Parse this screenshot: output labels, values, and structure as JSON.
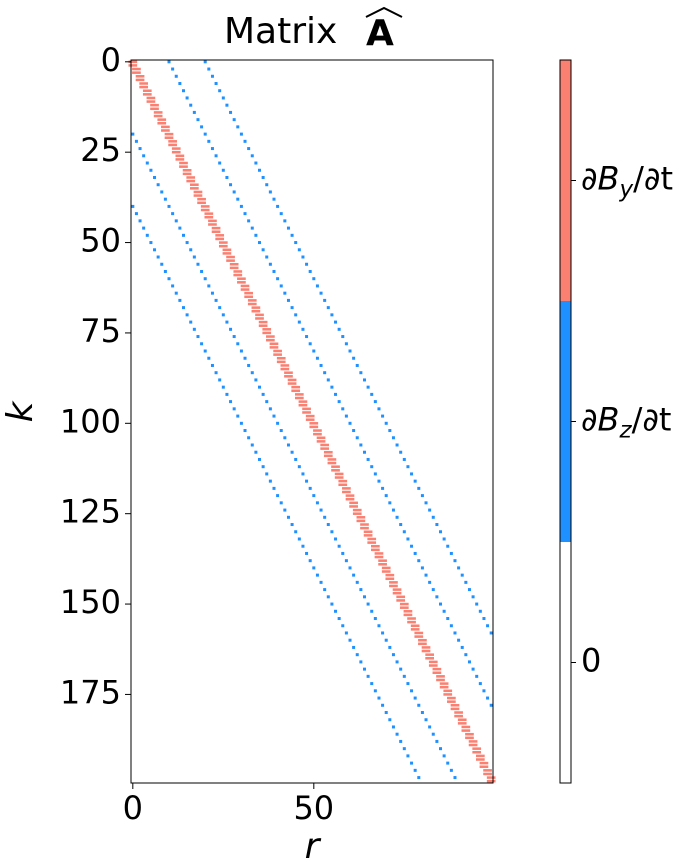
{
  "chart_data": {
    "type": "matrix",
    "title": "Matrix",
    "title_symbol": "A",
    "x_label": "r",
    "y_label": "k",
    "xlim": [
      -0.5,
      99.5
    ],
    "ylim": [
      199.5,
      -0.5
    ],
    "xticks": [
      0,
      50
    ],
    "yticks": [
      0,
      25,
      50,
      75,
      100,
      125,
      150,
      175
    ],
    "levels": [
      {
        "label": [
          "0"
        ],
        "color": "#ffffff"
      },
      {
        "label": [
          "∂B",
          "z",
          "/∂t"
        ],
        "color": "#1e90ff"
      },
      {
        "label": [
          "∂B",
          "y",
          "/∂t"
        ],
        "color": "#fa8072"
      }
    ],
    "series": [
      {
        "level": 1,
        "x": [
          10,
          11,
          12,
          13,
          14,
          15,
          16,
          17,
          18,
          19,
          20,
          21,
          22,
          23,
          24,
          25,
          26,
          27,
          28,
          29,
          30,
          31,
          32,
          33,
          34,
          35,
          36,
          37,
          38,
          39,
          40,
          41,
          42,
          43,
          44,
          45,
          46,
          47,
          48,
          49,
          50,
          51,
          52,
          53,
          54,
          55,
          56,
          57,
          58,
          59,
          60,
          61,
          62,
          63,
          64,
          65,
          66,
          67,
          68,
          69,
          70,
          71,
          72,
          73,
          74,
          75,
          76,
          77,
          78,
          79,
          80,
          81,
          82,
          83,
          84,
          85,
          86,
          87,
          88,
          89,
          90,
          91,
          92,
          93,
          94,
          95,
          96,
          97,
          98,
          99
        ],
        "values": [
          0,
          2,
          4,
          6,
          8,
          10,
          12,
          14,
          16,
          18,
          20,
          22,
          24,
          26,
          28,
          30,
          32,
          34,
          36,
          38,
          40,
          42,
          44,
          46,
          48,
          50,
          52,
          54,
          56,
          58,
          60,
          62,
          64,
          66,
          68,
          70,
          72,
          74,
          76,
          78,
          80,
          82,
          84,
          86,
          88,
          90,
          92,
          94,
          96,
          98,
          100,
          102,
          104,
          106,
          108,
          110,
          112,
          114,
          116,
          118,
          120,
          122,
          124,
          126,
          128,
          130,
          132,
          134,
          136,
          138,
          140,
          142,
          144,
          146,
          148,
          150,
          152,
          154,
          156,
          158,
          160,
          162,
          164,
          166,
          168,
          170,
          172,
          174,
          176,
          178
        ]
      },
      {
        "level": 1,
        "x": [
          20,
          21,
          22,
          23,
          24,
          25,
          26,
          27,
          28,
          29,
          30,
          31,
          32,
          33,
          34,
          35,
          36,
          37,
          38,
          39,
          40,
          41,
          42,
          43,
          44,
          45,
          46,
          47,
          48,
          49,
          50,
          51,
          52,
          53,
          54,
          55,
          56,
          57,
          58,
          59,
          60,
          61,
          62,
          63,
          64,
          65,
          66,
          67,
          68,
          69,
          70,
          71,
          72,
          73,
          74,
          75,
          76,
          77,
          78,
          79,
          80,
          81,
          82,
          83,
          84,
          85,
          86,
          87,
          88,
          89,
          90,
          91,
          92,
          93,
          94,
          95,
          96,
          97,
          98,
          99
        ],
        "values": [
          0,
          2,
          4,
          6,
          8,
          10,
          12,
          14,
          16,
          18,
          20,
          22,
          24,
          26,
          28,
          30,
          32,
          34,
          36,
          38,
          40,
          42,
          44,
          46,
          48,
          50,
          52,
          54,
          56,
          58,
          60,
          62,
          64,
          66,
          68,
          70,
          72,
          74,
          76,
          78,
          80,
          82,
          84,
          86,
          88,
          90,
          92,
          94,
          96,
          98,
          100,
          102,
          104,
          106,
          108,
          110,
          112,
          114,
          116,
          118,
          120,
          122,
          124,
          126,
          128,
          130,
          132,
          134,
          136,
          138,
          140,
          142,
          144,
          146,
          148,
          150,
          152,
          154,
          156,
          158
        ]
      },
      {
        "level": 1,
        "x": [
          0,
          1,
          2,
          3,
          4,
          5,
          6,
          7,
          8,
          9,
          10,
          11,
          12,
          13,
          14,
          15,
          16,
          17,
          18,
          19,
          20,
          21,
          22,
          23,
          24,
          25,
          26,
          27,
          28,
          29,
          30,
          31,
          32,
          33,
          34,
          35,
          36,
          37,
          38,
          39,
          40,
          41,
          42,
          43,
          44,
          45,
          46,
          47,
          48,
          49,
          50,
          51,
          52,
          53,
          54,
          55,
          56,
          57,
          58,
          59,
          60,
          61,
          62,
          63,
          64,
          65,
          66,
          67,
          68,
          69,
          70,
          71,
          72,
          73,
          74,
          75,
          76,
          77,
          78,
          79,
          80,
          81,
          82,
          83,
          84,
          85,
          86,
          87,
          88,
          89
        ],
        "values": [
          20,
          22,
          24,
          26,
          28,
          30,
          32,
          34,
          36,
          38,
          40,
          42,
          44,
          46,
          48,
          50,
          52,
          54,
          56,
          58,
          60,
          62,
          64,
          66,
          68,
          70,
          72,
          74,
          76,
          78,
          80,
          82,
          84,
          86,
          88,
          90,
          92,
          94,
          96,
          98,
          100,
          102,
          104,
          106,
          108,
          110,
          112,
          114,
          116,
          118,
          120,
          122,
          124,
          126,
          128,
          130,
          132,
          134,
          136,
          138,
          140,
          142,
          144,
          146,
          148,
          150,
          152,
          154,
          156,
          158,
          160,
          162,
          164,
          166,
          168,
          170,
          172,
          174,
          176,
          178,
          180,
          182,
          184,
          186,
          188,
          190,
          192,
          194,
          196,
          198
        ]
      },
      {
        "level": 1,
        "x": [
          0,
          1,
          2,
          3,
          4,
          5,
          6,
          7,
          8,
          9,
          10,
          11,
          12,
          13,
          14,
          15,
          16,
          17,
          18,
          19,
          20,
          21,
          22,
          23,
          24,
          25,
          26,
          27,
          28,
          29,
          30,
          31,
          32,
          33,
          34,
          35,
          36,
          37,
          38,
          39,
          40,
          41,
          42,
          43,
          44,
          45,
          46,
          47,
          48,
          49,
          50,
          51,
          52,
          53,
          54,
          55,
          56,
          57,
          58,
          59,
          60,
          61,
          62,
          63,
          64,
          65,
          66,
          67,
          68,
          69,
          70,
          71,
          72,
          73,
          74,
          75,
          76,
          77,
          78,
          79
        ],
        "values": [
          40,
          42,
          44,
          46,
          48,
          50,
          52,
          54,
          56,
          58,
          60,
          62,
          64,
          66,
          68,
          70,
          72,
          74,
          76,
          78,
          80,
          82,
          84,
          86,
          88,
          90,
          92,
          94,
          96,
          98,
          100,
          102,
          104,
          106,
          108,
          110,
          112,
          114,
          116,
          118,
          120,
          122,
          124,
          126,
          128,
          130,
          132,
          134,
          136,
          138,
          140,
          142,
          144,
          146,
          148,
          150,
          152,
          154,
          156,
          158,
          160,
          162,
          164,
          166,
          168,
          170,
          172,
          174,
          176,
          178,
          180,
          182,
          184,
          186,
          188,
          190,
          192,
          194,
          196,
          198
        ]
      },
      {
        "level": 2,
        "x": [
          0,
          0,
          1,
          1,
          2,
          2,
          3,
          3,
          4,
          4,
          5,
          5,
          6,
          6,
          7,
          7,
          8,
          8,
          9,
          9,
          10,
          10,
          11,
          11,
          12,
          12,
          13,
          13,
          14,
          14,
          15,
          15,
          16,
          16,
          17,
          17,
          18,
          18,
          19,
          19,
          20,
          20,
          21,
          21,
          22,
          22,
          23,
          23,
          24,
          24,
          25,
          25,
          26,
          26,
          27,
          27,
          28,
          28,
          29,
          29,
          30,
          30,
          31,
          31,
          32,
          32,
          33,
          33,
          34,
          34,
          35,
          35,
          36,
          36,
          37,
          37,
          38,
          38,
          39,
          39,
          40,
          40,
          41,
          41,
          42,
          42,
          43,
          43,
          44,
          44,
          45,
          45,
          46,
          46,
          47,
          47,
          48,
          48,
          49,
          49,
          50,
          50,
          51,
          51,
          52,
          52,
          53,
          53,
          54,
          54,
          55,
          55,
          56,
          56,
          57,
          57,
          58,
          58,
          59,
          59,
          60,
          60,
          61,
          61,
          62,
          62,
          63,
          63,
          64,
          64,
          65,
          65,
          66,
          66,
          67,
          67,
          68,
          68,
          69,
          69,
          70,
          70,
          71,
          71,
          72,
          72,
          73,
          73,
          74,
          74,
          75,
          75,
          76,
          76,
          77,
          77,
          78,
          78,
          79,
          79,
          80,
          80,
          81,
          81,
          82,
          82,
          83,
          83,
          84,
          84,
          85,
          85,
          86,
          86,
          87,
          87,
          88,
          88,
          89,
          89,
          90,
          90,
          91,
          91,
          92,
          92,
          93,
          93,
          94,
          94,
          95,
          95,
          96,
          96,
          97,
          97,
          98,
          98,
          99,
          99
        ],
        "values": [
          0,
          1,
          2,
          3,
          4,
          5,
          6,
          7,
          8,
          9,
          10,
          11,
          12,
          13,
          14,
          15,
          16,
          17,
          18,
          19,
          20,
          21,
          22,
          23,
          24,
          25,
          26,
          27,
          28,
          29,
          30,
          31,
          32,
          33,
          34,
          35,
          36,
          37,
          38,
          39,
          40,
          41,
          42,
          43,
          44,
          45,
          46,
          47,
          48,
          49,
          50,
          51,
          52,
          53,
          54,
          55,
          56,
          57,
          58,
          59,
          60,
          61,
          62,
          63,
          64,
          65,
          66,
          67,
          68,
          69,
          70,
          71,
          72,
          73,
          74,
          75,
          76,
          77,
          78,
          79,
          80,
          81,
          82,
          83,
          84,
          85,
          86,
          87,
          88,
          89,
          90,
          91,
          92,
          93,
          94,
          95,
          96,
          97,
          98,
          99,
          100,
          101,
          102,
          103,
          104,
          105,
          106,
          107,
          108,
          109,
          110,
          111,
          112,
          113,
          114,
          115,
          116,
          117,
          118,
          119,
          120,
          121,
          122,
          123,
          124,
          125,
          126,
          127,
          128,
          129,
          130,
          131,
          132,
          133,
          134,
          135,
          136,
          137,
          138,
          139,
          140,
          141,
          142,
          143,
          144,
          145,
          146,
          147,
          148,
          149,
          150,
          151,
          152,
          153,
          154,
          155,
          156,
          157,
          158,
          159,
          160,
          161,
          162,
          163,
          164,
          165,
          166,
          167,
          168,
          169,
          170,
          171,
          172,
          173,
          174,
          175,
          176,
          177,
          178,
          179,
          180,
          181,
          182,
          183,
          184,
          185,
          186,
          187,
          188,
          189,
          190,
          191,
          192,
          193,
          194,
          195,
          196,
          197,
          198,
          199
        ]
      }
    ]
  }
}
